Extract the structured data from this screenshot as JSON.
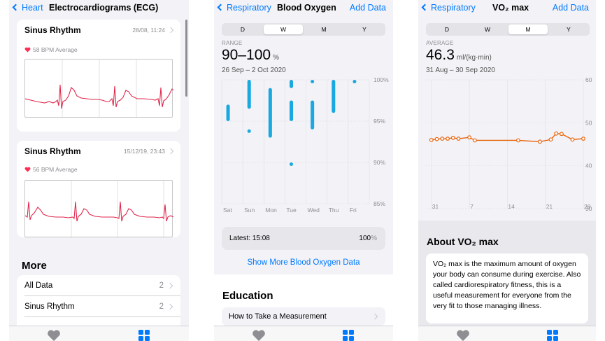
{
  "ecg_screen": {
    "back_label": "Heart",
    "title": "Electrocardiograms (ECG)",
    "recordings": [
      {
        "title": "Sinus Rhythm",
        "date": "28/08, 11:24",
        "bpm": "58 BPM Average"
      },
      {
        "title": "Sinus Rhythm",
        "date": "15/12/19, 23:43",
        "bpm": "56 BPM Average"
      }
    ],
    "more_title": "More",
    "more_items": [
      {
        "label": "All Data",
        "count": "2"
      },
      {
        "label": "Sinus Rhythm",
        "count": "2"
      }
    ]
  },
  "oxygen_screen": {
    "back_label": "Respiratory",
    "title": "Blood Oxygen",
    "action": "Add Data",
    "segments": [
      "D",
      "W",
      "M",
      "Y"
    ],
    "selected_segment": "W",
    "range_label": "RANGE",
    "range_value": "90–100",
    "range_unit": "%",
    "date_range": "26 Sep – 2 Oct 2020",
    "latest_label": "Latest: 15:08",
    "latest_value": "100",
    "latest_unit": "%",
    "show_more": "Show More Blood Oxygen Data",
    "education_title": "Education",
    "education_item": "How to Take a Measurement"
  },
  "vo2_screen": {
    "back_label": "Respiratory",
    "title": "VO₂ max",
    "action": "Add Data",
    "segments": [
      "D",
      "W",
      "M",
      "Y"
    ],
    "selected_segment": "M",
    "avg_label": "AVERAGE",
    "avg_value": "46.3",
    "avg_unit": "ml/(kg·min)",
    "date_range": "31 Aug – 30 Sep 2020",
    "about_title": "About VO₂ max",
    "about_text": "VO₂ max is the maximum amount of oxygen your body can consume during exercise. Also called cardiorespiratory fitness, this is a useful measurement for everyone from the very fit to those managing illness."
  },
  "chart_data": [
    {
      "type": "bar",
      "subtype": "range",
      "categories": [
        "Sat",
        "Sun",
        "Mon",
        "Tue",
        "Wed",
        "Thu",
        "Fri"
      ],
      "y_ticks": [
        "100%",
        "95%",
        "90%",
        "85%"
      ],
      "ylim": [
        85,
        100
      ],
      "color": "#1aa8e0",
      "ranges": [
        {
          "day": "Sat",
          "bars": [
            [
              95,
              97
            ]
          ]
        },
        {
          "day": "Sun",
          "bars": [
            [
              96.5,
              100
            ],
            [
              94,
              94
            ]
          ]
        },
        {
          "day": "Mon",
          "bars": [
            [
              93,
              99
            ]
          ]
        },
        {
          "day": "Tue",
          "bars": [
            [
              99,
              100
            ],
            [
              95,
              97.5
            ],
            [
              90,
              90
            ]
          ]
        },
        {
          "day": "Wed",
          "bars": [
            [
              100,
              100
            ],
            [
              94,
              97.5
            ]
          ]
        },
        {
          "day": "Thu",
          "bars": [
            [
              96,
              100
            ]
          ]
        },
        {
          "day": "Fri",
          "bars": [
            [
              100,
              100
            ]
          ]
        }
      ]
    },
    {
      "type": "line",
      "x_ticks": [
        "31",
        "7",
        "14",
        "21",
        "28"
      ],
      "y_ticks": [
        "60",
        "50",
        "40",
        "30"
      ],
      "ylim": [
        30,
        60
      ],
      "xlim": [
        30,
        59
      ],
      "color": "#e8630a",
      "x": [
        31,
        32,
        33,
        34,
        35,
        36,
        38,
        39,
        47,
        51,
        53,
        54,
        55,
        57,
        59
      ],
      "values": [
        46.0,
        46.2,
        46.3,
        46.3,
        46.5,
        46.3,
        46.6,
        45.9,
        45.9,
        45.6,
        46.1,
        47.5,
        47.4,
        46.1,
        46.3
      ]
    }
  ]
}
